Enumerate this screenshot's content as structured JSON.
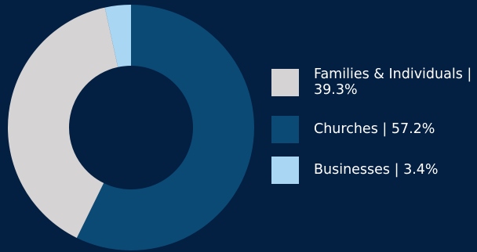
{
  "chart_data": {
    "type": "pie",
    "variant": "donut",
    "title": "",
    "slices": [
      {
        "label": "Churches",
        "value": 57.2,
        "color": "#0b4a75"
      },
      {
        "label": "Families & Individuals",
        "value": 39.3,
        "color": "#d5d3d3"
      },
      {
        "label": "Businesses",
        "value": 3.4,
        "color": "#a9d6f3"
      }
    ],
    "legend_position": "right"
  },
  "legend": {
    "items": [
      {
        "text": "Families & Individuals | 39.3%",
        "color": "#d5d3d3"
      },
      {
        "text": "Churches | 57.2%",
        "color": "#0b4a75"
      },
      {
        "text": "Businesses | 3.4%",
        "color": "#a9d6f3"
      }
    ]
  },
  "colors": {
    "background": "#031f42"
  }
}
